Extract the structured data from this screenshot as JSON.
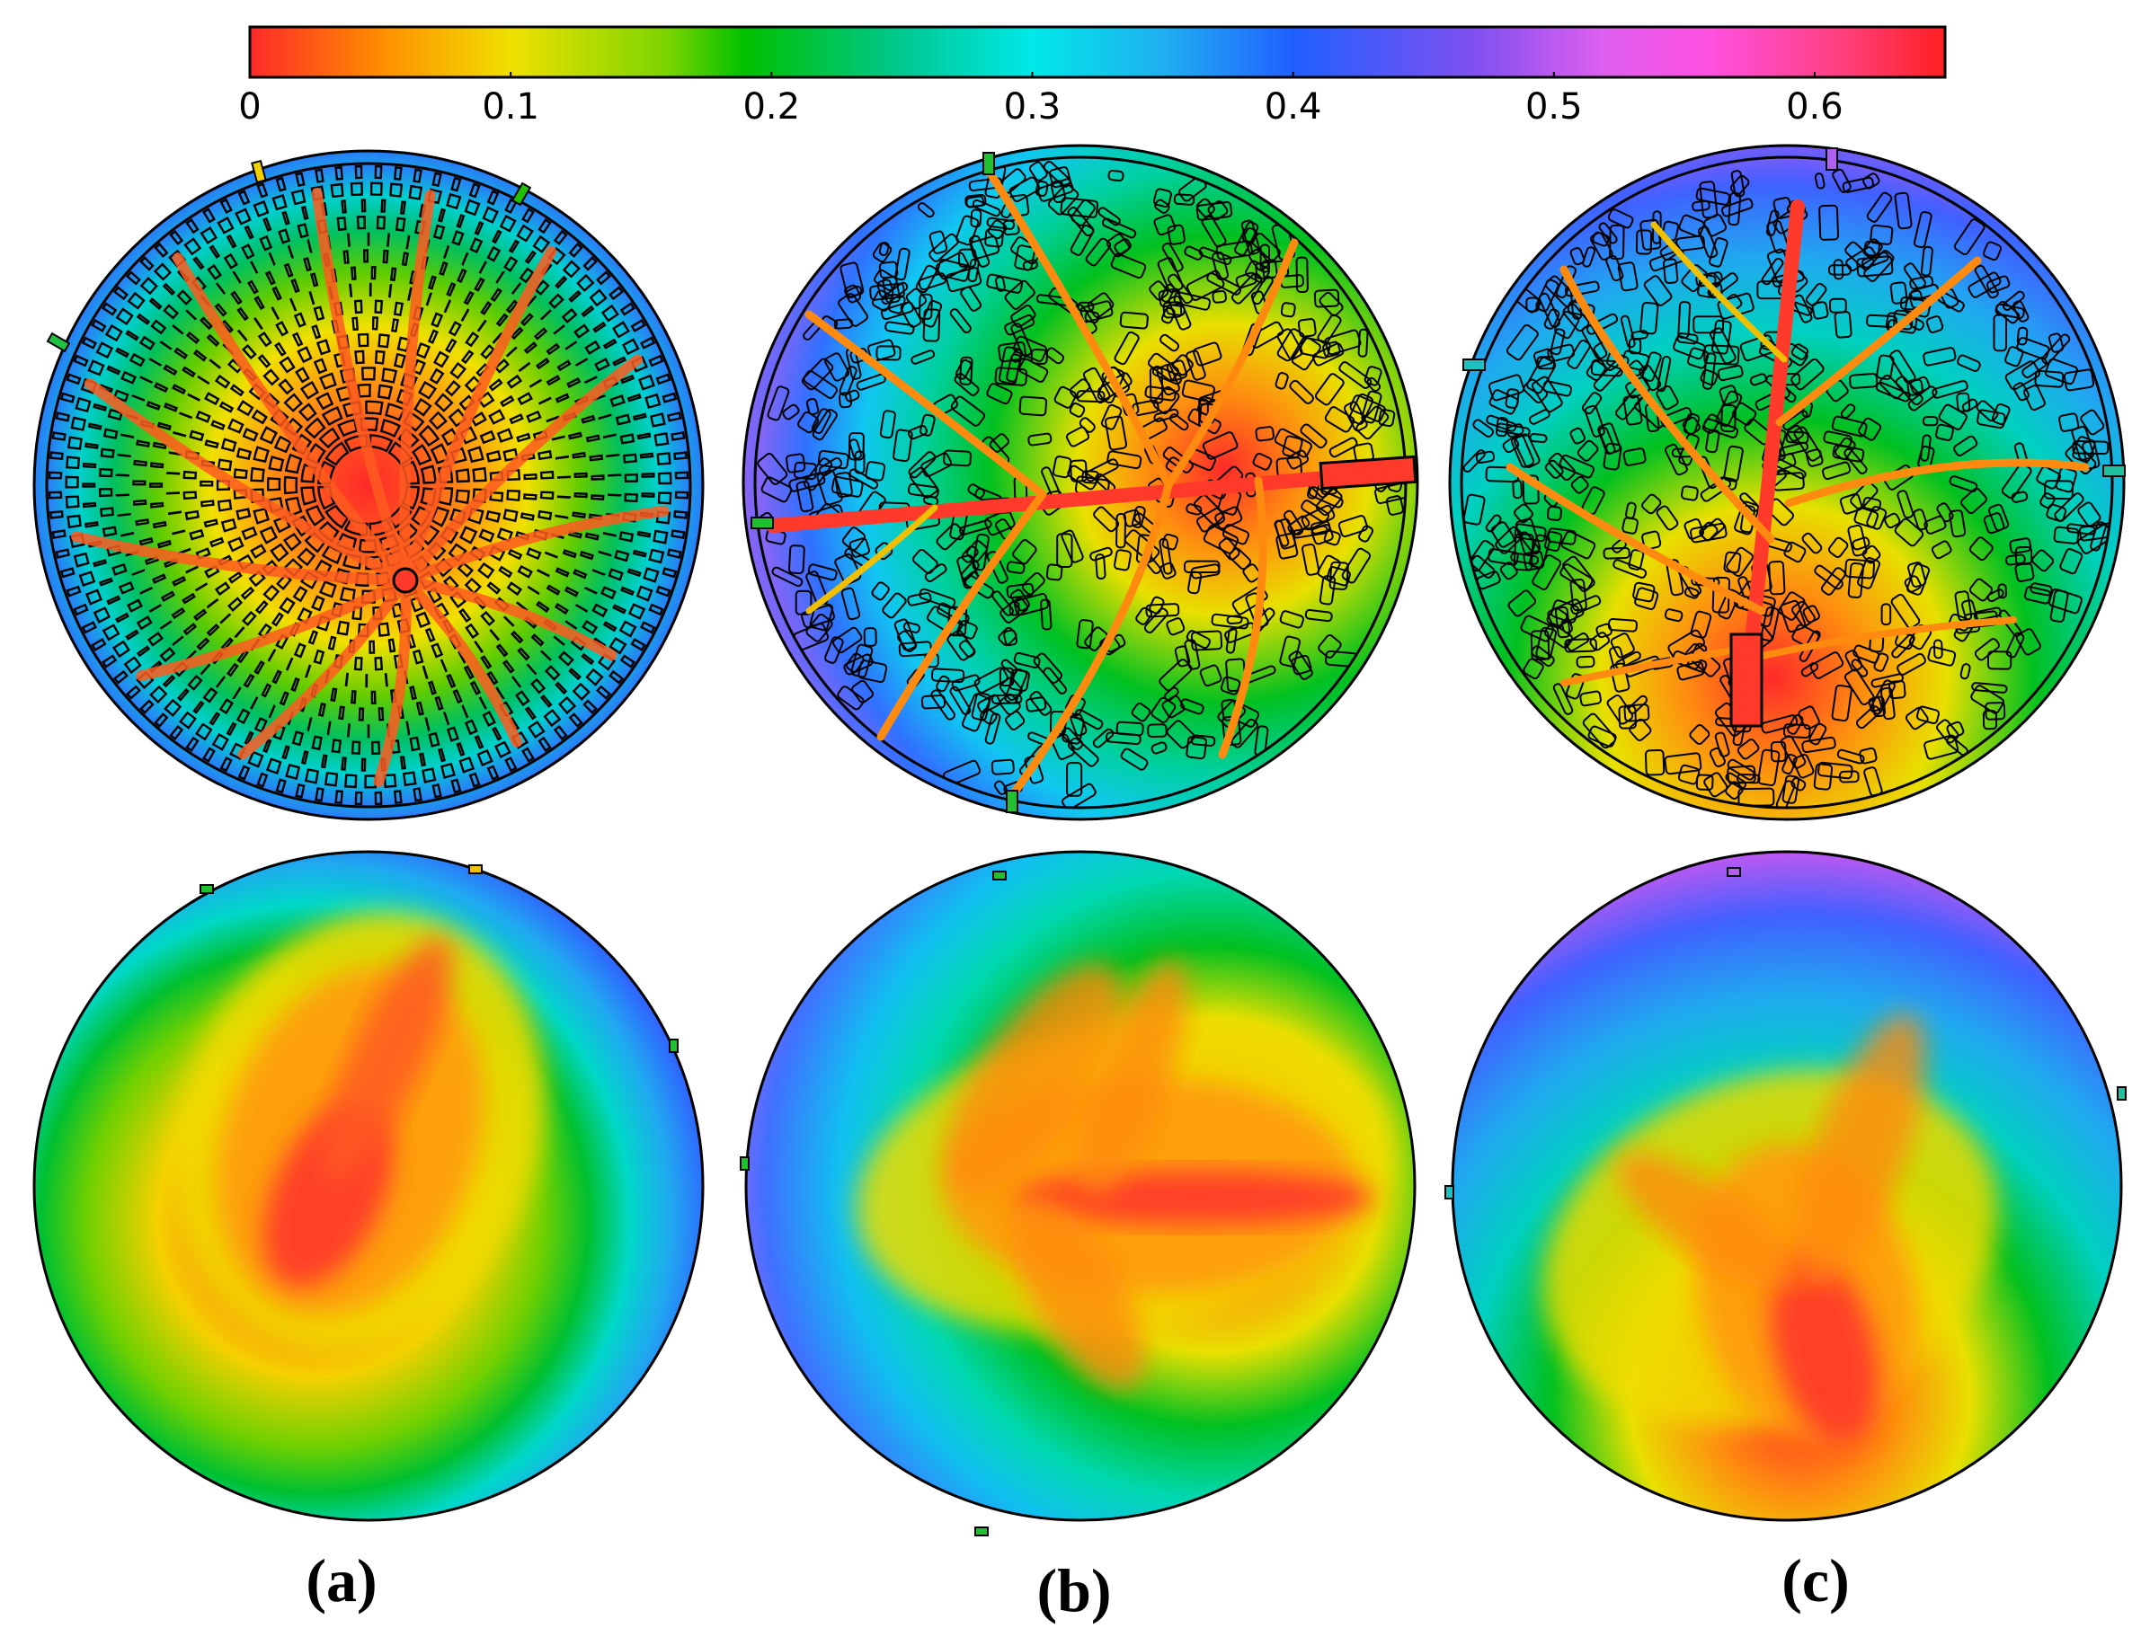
{
  "colorbar": {
    "ticks": [
      "0",
      "0.1",
      "0.2",
      "0.3",
      "0.4",
      "0.5",
      "0.6"
    ],
    "min": 0,
    "max": 0.65,
    "stops": [
      {
        "value": 0.0,
        "color": "#ff2a2a"
      },
      {
        "value": 0.05,
        "color": "#ff8c00"
      },
      {
        "value": 0.1,
        "color": "#f0e000"
      },
      {
        "value": 0.16,
        "color": "#7cd400"
      },
      {
        "value": 0.19,
        "color": "#00c000"
      },
      {
        "value": 0.25,
        "color": "#00c890"
      },
      {
        "value": 0.3,
        "color": "#00e8e8"
      },
      {
        "value": 0.35,
        "color": "#20b0f0"
      },
      {
        "value": 0.4,
        "color": "#2060ff"
      },
      {
        "value": 0.47,
        "color": "#8050f0"
      },
      {
        "value": 0.52,
        "color": "#e060f0"
      },
      {
        "value": 0.56,
        "color": "#ff50e0"
      },
      {
        "value": 0.61,
        "color": "#ff4080"
      },
      {
        "value": 0.65,
        "color": "#ff2020"
      }
    ]
  },
  "panels": [
    {
      "label": "(a)",
      "pattern": "radial"
    },
    {
      "label": "(b)",
      "pattern": "leaf-horizontal"
    },
    {
      "label": "(c)",
      "pattern": "leaf-vertical"
    }
  ],
  "colors": {
    "hot": "#ff2a2a",
    "orange": "#ff8c00",
    "yellow": "#f0e000",
    "green": "#00c000",
    "cyan": "#00e0e8",
    "blue": "#2060ff",
    "violet": "#8050f0",
    "magenta": "#ff50e0",
    "channel-outline": "#000000"
  }
}
